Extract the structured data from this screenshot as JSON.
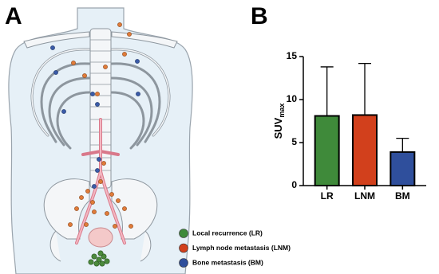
{
  "panels": {
    "a": {
      "label": "A"
    },
    "b": {
      "label": "B"
    }
  },
  "legend": [
    {
      "name": "Local recurrence (LR)",
      "color": "#3f8a3a"
    },
    {
      "name": "Lymph node metastasis (LNM)",
      "color": "#d2401c"
    },
    {
      "name": "Bone metastasis (BM)",
      "color": "#2f4f9c"
    }
  ],
  "chart_data": {
    "type": "bar",
    "ylabel": "SUV",
    "ylabel_sub": "max",
    "categories": [
      "LR",
      "LNM",
      "BM"
    ],
    "values": [
      8.1,
      8.2,
      3.9
    ],
    "errors": [
      5.7,
      6.0,
      1.6
    ],
    "colors": [
      "#3f8a3a",
      "#d2401c",
      "#2f4f9c"
    ],
    "ylim": [
      0,
      15
    ],
    "yticks": [
      0,
      5,
      10,
      15
    ]
  }
}
